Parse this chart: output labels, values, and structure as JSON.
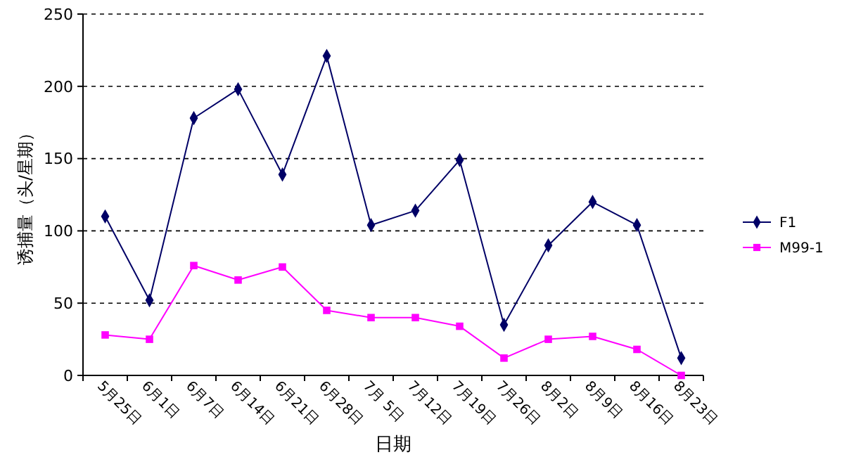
{
  "chart_data": {
    "type": "line",
    "xlabel": "日期",
    "ylabel": "诱捕量（头/星期）",
    "categories": [
      "5月25日",
      "6月1日",
      "6月7日",
      "6月14日",
      "6月21日",
      "6月28日",
      "7月 5日",
      "7月12日",
      "7月19日",
      "7月26日",
      "8月2日",
      "8月9日",
      "8月16日",
      "8月23日"
    ],
    "series": [
      {
        "name": "F1",
        "color": "#000066",
        "marker": "diamond",
        "values": [
          110,
          52,
          178,
          198,
          139,
          221,
          104,
          114,
          149,
          35,
          90,
          120,
          104,
          12
        ]
      },
      {
        "name": "M99-1",
        "color": "#ff00ff",
        "marker": "square",
        "values": [
          28,
          25,
          76,
          66,
          75,
          45,
          40,
          40,
          34,
          12,
          25,
          27,
          18,
          0
        ]
      }
    ],
    "ylim": [
      0,
      250
    ],
    "yticks": [
      0,
      50,
      100,
      150,
      200,
      250
    ],
    "grid": "y",
    "legend": "right"
  }
}
